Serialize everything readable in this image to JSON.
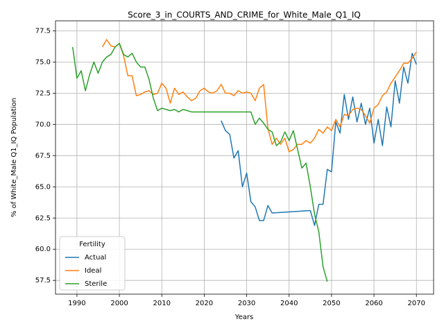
{
  "chart_data": {
    "type": "line",
    "title": "Score_3_in_COURTS_AND_CRIME_for_White_Male_Q1_IQ",
    "x_label": "Years",
    "y_label": "% of White_Male Q1_IQ Population",
    "legend_title": "Fertility",
    "legend": "lower left",
    "grid": true,
    "xlim": [
      1984.95,
      2074.05
    ],
    "ylim": [
      56.4,
      78.3
    ],
    "xticks": [
      1990,
      2000,
      2010,
      2020,
      2030,
      2040,
      2050,
      2060,
      2070
    ],
    "yticks": [
      57.5,
      {
        "value": 60,
        "label": "60.0"
      },
      62.5,
      {
        "value": 65,
        "label": "65.0"
      },
      67.5,
      {
        "value": 70,
        "label": "70.0"
      },
      72.5,
      {
        "value": 75,
        "label": "75.0"
      },
      77.5
    ],
    "series": [
      {
        "name": "Actual",
        "color": "#1f77b4",
        "x": [
          2024,
          2025,
          2026,
          2027,
          2028,
          2029,
          2030,
          2031,
          2032,
          2033,
          2034,
          2035,
          2036,
          2045,
          2046,
          2047,
          2048,
          2049,
          2050,
          2051,
          2052,
          2053,
          2054,
          2055,
          2056,
          2057,
          2058,
          2059,
          2060,
          2061,
          2062,
          2063,
          2064,
          2065,
          2066,
          2067,
          2068,
          2069,
          2070
        ],
        "values": [
          70.3,
          69.5,
          69.2,
          67.3,
          67.9,
          65.0,
          66.1,
          63.8,
          63.4,
          62.3,
          62.3,
          63.5,
          62.9,
          63.1,
          61.9,
          63.6,
          63.6,
          66.4,
          66.2,
          70.2,
          69.3,
          72.4,
          70.4,
          72.2,
          70.2,
          71.7,
          70.0,
          71.3,
          68.5,
          70.4,
          68.3,
          71.4,
          69.8,
          73.5,
          71.7,
          74.6,
          73.3,
          75.7,
          74.8
        ]
      },
      {
        "name": "Ideal",
        "color": "#ff7f0e",
        "x": [
          1996,
          1997,
          1998,
          1999,
          2000,
          2001,
          2002,
          2003,
          2004,
          2005,
          2006,
          2007,
          2008,
          2009,
          2010,
          2011,
          2012,
          2013,
          2014,
          2015,
          2016,
          2017,
          2018,
          2019,
          2020,
          2021,
          2022,
          2023,
          2024,
          2025,
          2026,
          2027,
          2028,
          2029,
          2030,
          2031,
          2032,
          2033,
          2034,
          2035,
          2036,
          2037,
          2038,
          2039,
          2040,
          2041,
          2042,
          2043,
          2044,
          2045,
          2046,
          2047,
          2048,
          2049,
          2050,
          2051,
          2052,
          2053,
          2054,
          2055,
          2056,
          2057,
          2058,
          2059,
          2060,
          2061,
          2062,
          2063,
          2064,
          2065,
          2066,
          2067,
          2068,
          2069,
          2070
        ],
        "values": [
          76.2,
          76.8,
          76.3,
          76.2,
          76.5,
          75.5,
          73.9,
          73.9,
          72.3,
          72.4,
          72.6,
          72.7,
          72.4,
          72.5,
          73.3,
          72.9,
          71.7,
          72.9,
          72.4,
          72.6,
          72.2,
          71.9,
          72.1,
          72.7,
          72.9,
          72.6,
          72.5,
          72.7,
          73.2,
          72.5,
          72.5,
          72.3,
          72.7,
          72.5,
          72.6,
          72.5,
          71.9,
          72.9,
          73.2,
          69.7,
          68.4,
          68.9,
          68.4,
          68.9,
          67.8,
          68.0,
          68.4,
          68.4,
          68.7,
          68.5,
          68.9,
          69.6,
          69.3,
          69.8,
          69.5,
          70.4,
          69.8,
          70.8,
          70.7,
          71.2,
          71.3,
          71.2,
          70.7,
          70.1,
          71.3,
          71.6,
          72.3,
          72.6,
          73.3,
          73.8,
          74.3,
          74.9,
          74.9,
          75.3,
          75.8
        ]
      },
      {
        "name": "Sterile",
        "color": "#2ca02c",
        "x": [
          1989,
          1990,
          1991,
          1992,
          1993,
          1994,
          1995,
          1996,
          1997,
          1998,
          1999,
          2000,
          2001,
          2002,
          2003,
          2004,
          2005,
          2006,
          2007,
          2008,
          2009,
          2010,
          2011,
          2012,
          2013,
          2014,
          2015,
          2016,
          2017,
          2018,
          2019,
          2020,
          2021,
          2022,
          2023,
          2024,
          2025,
          2026,
          2027,
          2028,
          2029,
          2030,
          2031,
          2032,
          2033,
          2034,
          2035,
          2036,
          2037,
          2038,
          2039,
          2040,
          2041,
          2042,
          2043,
          2044,
          2045,
          2046,
          2047,
          2048,
          2049
        ],
        "values": [
          76.2,
          73.7,
          74.3,
          72.7,
          74.0,
          75.0,
          74.1,
          75.0,
          75.4,
          75.6,
          76.2,
          76.5,
          75.6,
          75.4,
          75.7,
          75.0,
          74.6,
          74.6,
          73.6,
          72.1,
          71.1,
          71.3,
          71.2,
          71.1,
          71.2,
          71.0,
          71.2,
          71.1,
          71.0,
          71.0,
          71.0,
          71.0,
          71.0,
          71.0,
          71.0,
          71.0,
          71.0,
          71.0,
          71.0,
          71.0,
          71.0,
          71.0,
          71.0,
          70.0,
          70.5,
          70.1,
          69.6,
          69.4,
          68.3,
          68.6,
          69.4,
          68.7,
          69.5,
          68.0,
          66.5,
          66.9,
          65.0,
          62.8,
          61.4,
          58.6,
          57.4
        ]
      }
    ]
  }
}
